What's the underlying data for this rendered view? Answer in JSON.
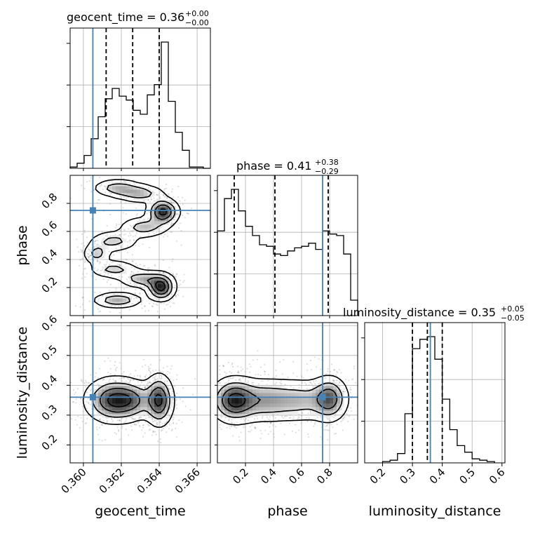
{
  "chart_data": {
    "type": "corner",
    "parameters": [
      "geocent_time",
      "phase",
      "luminosity_distance"
    ],
    "truth_color": "#4682b4",
    "truths": {
      "geocent_time": 0.3605,
      "phase": 0.75,
      "luminosity_distance": 0.36
    },
    "titles": [
      {
        "name": "geocent_time",
        "value": "0.36",
        "plus": "+0.00",
        "minus": "−0.00"
      },
      {
        "name": "phase",
        "value": "0.41",
        "plus": "+0.38",
        "minus": "−0.29"
      },
      {
        "name": "luminosity_distance",
        "value": "0.35",
        "plus": "+0.05",
        "minus": "−0.05"
      }
    ],
    "title_sep": " = ",
    "ranges": {
      "geocent_time": [
        0.3593,
        0.3667
      ],
      "phase": [
        0.0,
        1.0
      ],
      "luminosity_distance": [
        0.14,
        0.61
      ]
    },
    "ticks": {
      "geocent_time": [
        "0.360",
        "0.362",
        "0.364",
        "0.366"
      ],
      "phase": [
        "0.2",
        "0.4",
        "0.6",
        "0.8"
      ],
      "luminosity_distance": [
        "0.2",
        "0.3",
        "0.4",
        "0.5",
        "0.6"
      ]
    },
    "tick_values": {
      "geocent_time": [
        0.36,
        0.362,
        0.364,
        0.366
      ],
      "phase": [
        0.2,
        0.4,
        0.6,
        0.8
      ],
      "luminosity_distance": [
        0.2,
        0.3,
        0.4,
        0.5,
        0.6
      ]
    },
    "quantiles": {
      "geocent_time": [
        0.3612,
        0.3626,
        0.364
      ],
      "phase": [
        0.12,
        0.41,
        0.79
      ],
      "luminosity_distance": [
        0.3,
        0.35,
        0.4
      ]
    },
    "histograms": {
      "geocent_time": {
        "bin_edges": [
          0.3593,
          0.35967,
          0.36004,
          0.36041,
          0.36078,
          0.36115,
          0.36152,
          0.36189,
          0.36226,
          0.36263,
          0.363,
          0.36337,
          0.36374,
          0.36411,
          0.36448,
          0.36485,
          0.36522,
          0.36559,
          0.36596,
          0.36633,
          0.3667
        ],
        "counts": [
          0.01,
          0.04,
          0.1,
          0.23,
          0.4,
          0.54,
          0.62,
          0.56,
          0.53,
          0.45,
          0.42,
          0.57,
          0.65,
          0.98,
          0.52,
          0.28,
          0.14,
          0.01,
          0.01,
          0.0
        ]
      },
      "phase": {
        "bin_edges": [
          0.0,
          0.05,
          0.1,
          0.15,
          0.2,
          0.25,
          0.3,
          0.35,
          0.4,
          0.45,
          0.5,
          0.55,
          0.6,
          0.65,
          0.7,
          0.75,
          0.8,
          0.85,
          0.9,
          0.95,
          1.0
        ],
        "counts": [
          0.55,
          0.76,
          0.82,
          0.68,
          0.58,
          0.52,
          0.46,
          0.45,
          0.4,
          0.39,
          0.42,
          0.44,
          0.45,
          0.47,
          0.43,
          0.55,
          0.53,
          0.52,
          0.4,
          0.1
        ]
      },
      "luminosity_distance": {
        "bin_edges": [
          0.2,
          0.225,
          0.25,
          0.275,
          0.3,
          0.325,
          0.35,
          0.375,
          0.4,
          0.425,
          0.45,
          0.475,
          0.5,
          0.525,
          0.55,
          0.575
        ],
        "counts": [
          0.01,
          0.02,
          0.07,
          0.37,
          0.86,
          0.93,
          0.95,
          0.78,
          0.48,
          0.25,
          0.13,
          0.08,
          0.03,
          0.02,
          0.01
        ]
      }
    },
    "contour_blobs": {
      "phase_vs_geocent_time": [
        {
          "x": 0.3618,
          "y": 0.91,
          "sx": 0.0007,
          "sy": 0.035,
          "w": 0.5
        },
        {
          "x": 0.363,
          "y": 0.87,
          "sx": 0.0007,
          "sy": 0.035,
          "w": 0.5
        },
        {
          "x": 0.3642,
          "y": 0.74,
          "sx": 0.00045,
          "sy": 0.05,
          "w": 1.0
        },
        {
          "x": 0.3632,
          "y": 0.63,
          "sx": 0.0007,
          "sy": 0.04,
          "w": 0.5
        },
        {
          "x": 0.3616,
          "y": 0.53,
          "sx": 0.0007,
          "sy": 0.04,
          "w": 0.45
        },
        {
          "x": 0.3607,
          "y": 0.44,
          "sx": 0.0004,
          "sy": 0.04,
          "w": 0.45
        },
        {
          "x": 0.3616,
          "y": 0.33,
          "sx": 0.0007,
          "sy": 0.035,
          "w": 0.45
        },
        {
          "x": 0.3632,
          "y": 0.26,
          "sx": 0.0007,
          "sy": 0.035,
          "w": 0.55
        },
        {
          "x": 0.3641,
          "y": 0.2,
          "sx": 0.0004,
          "sy": 0.05,
          "w": 1.0
        },
        {
          "x": 0.3618,
          "y": 0.11,
          "sx": 0.0007,
          "sy": 0.03,
          "w": 0.6
        }
      ],
      "luminosity_distance_vs_geocent_time": [
        {
          "x": 0.3616,
          "y": 0.35,
          "sx": 0.0008,
          "sy": 0.04,
          "w": 1.0
        },
        {
          "x": 0.3627,
          "y": 0.35,
          "sx": 0.0006,
          "sy": 0.035,
          "w": 0.45
        },
        {
          "x": 0.364,
          "y": 0.35,
          "sx": 0.0004,
          "sy": 0.045,
          "w": 1.0
        }
      ],
      "luminosity_distance_vs_phase": [
        {
          "x": 0.12,
          "y": 0.35,
          "sx": 0.09,
          "sy": 0.04,
          "w": 1.0
        },
        {
          "x": 0.35,
          "y": 0.35,
          "sx": 0.12,
          "sy": 0.04,
          "w": 0.55
        },
        {
          "x": 0.6,
          "y": 0.35,
          "sx": 0.12,
          "sy": 0.04,
          "w": 0.45
        },
        {
          "x": 0.8,
          "y": 0.355,
          "sx": 0.07,
          "sy": 0.04,
          "w": 0.8
        }
      ]
    },
    "grid": true
  }
}
